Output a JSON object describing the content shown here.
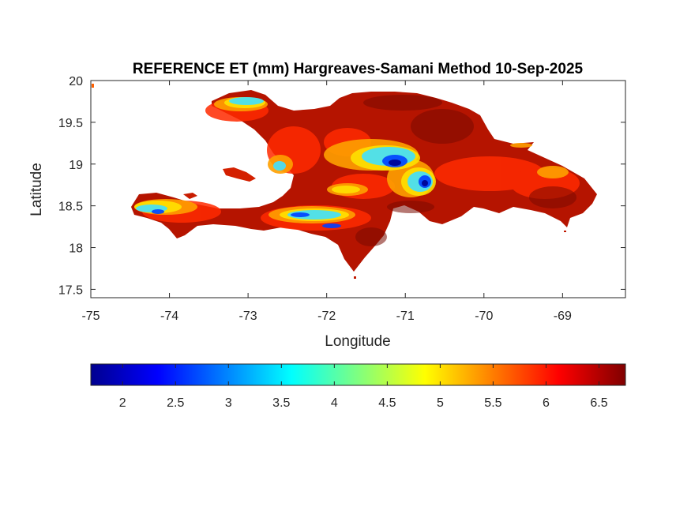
{
  "title": "REFERENCE ET (mm) Hargreaves-Samani Method  10-Sep-2025",
  "xlabel": "Longitude",
  "ylabel": "Latitude",
  "x_ticks": [
    "-75",
    "-74",
    "-73",
    "-72",
    "-71",
    "-70",
    "-69"
  ],
  "y_ticks": [
    "20",
    "19.5",
    "19",
    "18.5",
    "18",
    "17.5"
  ],
  "colorbar_ticks": [
    "2",
    "2.5",
    "3",
    "3.5",
    "4",
    "4.5",
    "5",
    "5.5",
    "6",
    "6.5"
  ],
  "colormap": "jet",
  "colormap_stops": [
    "#00008f",
    "#0000ff",
    "#00ffff",
    "#ffff00",
    "#ff0000",
    "#800000"
  ],
  "chart_data": {
    "type": "heatmap",
    "title": "REFERENCE ET (mm) Hargreaves-Samani Method  10-Sep-2025",
    "xlabel": "Longitude",
    "ylabel": "Latitude",
    "xlim": [
      -75,
      -68.2
    ],
    "ylim": [
      17.4,
      20
    ],
    "clim": [
      1.7,
      6.75
    ],
    "colorbar": "horizontal-below",
    "grid": false
  }
}
